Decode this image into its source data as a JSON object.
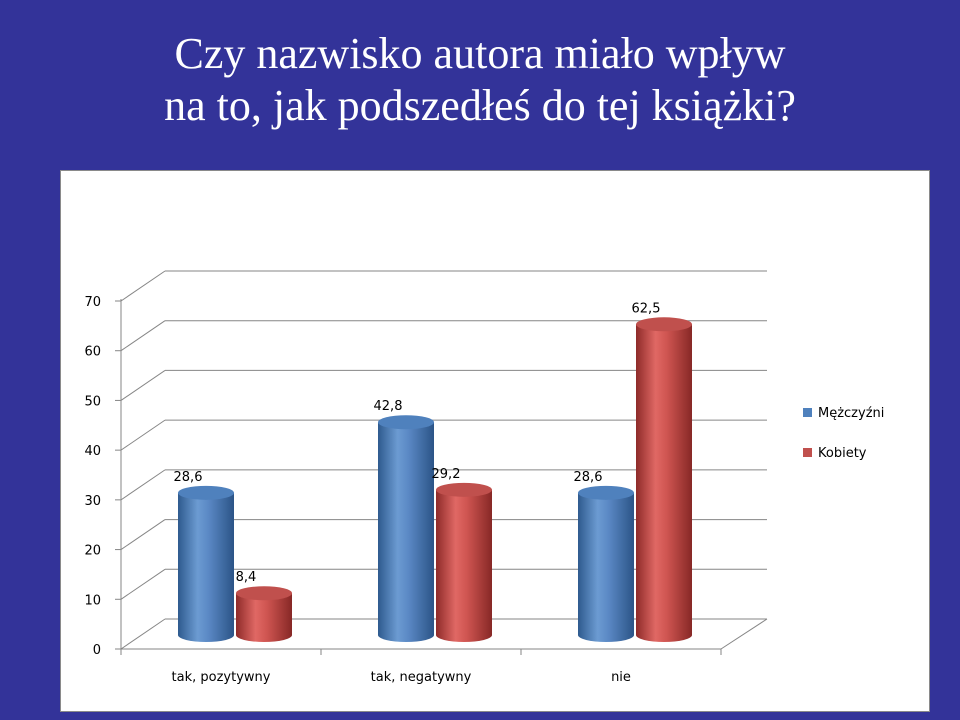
{
  "slide": {
    "title_line1": "Czy nazwisko autora miało wpływ",
    "title_line2": "na to, jak podszedłeś do tej książki?"
  },
  "chart_data": {
    "type": "bar",
    "style": "3d-cylinder",
    "categories": [
      "tak, pozytywny",
      "tak, negatywny",
      "nie"
    ],
    "series": [
      {
        "name": "Mężczyźni",
        "values": [
          28.6,
          42.8,
          28.6
        ],
        "labels": [
          "28,6",
          "42,8",
          "28,6"
        ],
        "color": "#4f81bd"
      },
      {
        "name": "Kobiety",
        "values": [
          8.4,
          29.2,
          62.5
        ],
        "labels": [
          "8,4",
          "29,2",
          "62,5"
        ],
        "color": "#c0504d"
      }
    ],
    "yticks": [
      "0",
      "10",
      "20",
      "30",
      "40",
      "50",
      "60",
      "70"
    ],
    "ylim": [
      0,
      70
    ],
    "grid": true,
    "legend_position": "right"
  }
}
